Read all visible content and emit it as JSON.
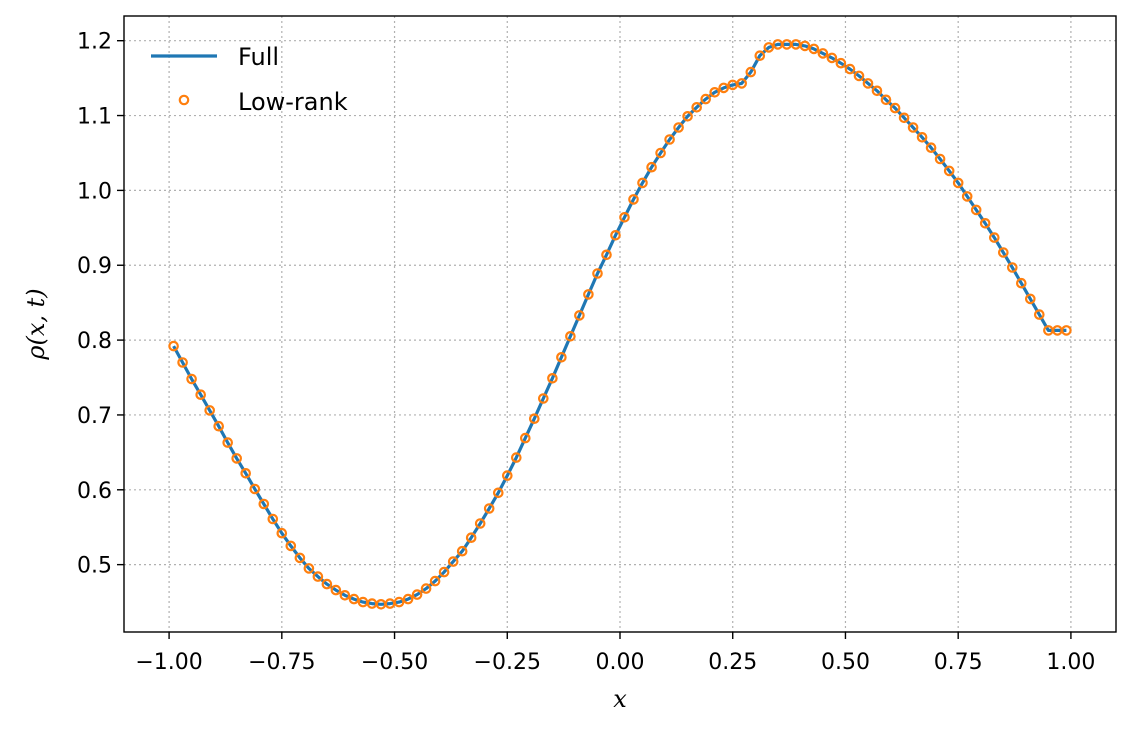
{
  "chart_data": {
    "type": "line",
    "xlabel": "x",
    "ylabel": "ρ(x, t)",
    "xlim": [
      -1.1,
      1.1
    ],
    "ylim": [
      0.41,
      1.233
    ],
    "grid": true,
    "legend_position": "top-left",
    "x_ticks": [
      -1.0,
      -0.75,
      -0.5,
      -0.25,
      0.0,
      0.25,
      0.5,
      0.75,
      1.0
    ],
    "x_tick_labels": [
      "−1.00",
      "−0.75",
      "−0.50",
      "−0.25",
      "0.00",
      "0.25",
      "0.50",
      "0.75",
      "1.00"
    ],
    "y_ticks": [
      0.5,
      0.6,
      0.7,
      0.8,
      0.9,
      1.0,
      1.1,
      1.2
    ],
    "y_tick_labels": [
      "0.5",
      "0.6",
      "0.7",
      "0.8",
      "0.9",
      "1.0",
      "1.1",
      "1.2"
    ],
    "series": [
      {
        "name": "Full",
        "style": "line",
        "color": "#1f77b4",
        "x": [
          -0.99,
          -0.97,
          -0.95,
          -0.93,
          -0.91,
          -0.89,
          -0.87,
          -0.85,
          -0.83,
          -0.81,
          -0.79,
          -0.77,
          -0.75,
          -0.73,
          -0.71,
          -0.69,
          -0.67,
          -0.65,
          -0.63,
          -0.61,
          -0.59,
          -0.57,
          -0.55,
          -0.53,
          -0.51,
          -0.49,
          -0.47,
          -0.45,
          -0.43,
          -0.41,
          -0.39,
          -0.37,
          -0.35,
          -0.33,
          -0.31,
          -0.29,
          -0.27,
          -0.25,
          -0.23,
          -0.21,
          -0.19,
          -0.17,
          -0.15,
          -0.13,
          -0.11,
          -0.09,
          -0.07,
          -0.05,
          -0.03,
          -0.01,
          0.01,
          0.03,
          0.05,
          0.07,
          0.09,
          0.11,
          0.13,
          0.15,
          0.17,
          0.19,
          0.21,
          0.23,
          0.25,
          0.27,
          0.29,
          0.31,
          0.33,
          0.35,
          0.37,
          0.39,
          0.41,
          0.43,
          0.45,
          0.47,
          0.49,
          0.51,
          0.53,
          0.55,
          0.57,
          0.59,
          0.61,
          0.63,
          0.65,
          0.67,
          0.69,
          0.71,
          0.73,
          0.75,
          0.77,
          0.79,
          0.81,
          0.83,
          0.85,
          0.87,
          0.89,
          0.91,
          0.93,
          0.95,
          0.97,
          0.99
        ],
        "y": [
          0.792,
          0.77,
          0.748,
          0.727,
          0.706,
          0.685,
          0.663,
          0.642,
          0.622,
          0.601,
          0.581,
          0.561,
          0.542,
          0.525,
          0.509,
          0.495,
          0.484,
          0.474,
          0.466,
          0.459,
          0.454,
          0.45,
          0.448,
          0.447,
          0.448,
          0.45,
          0.454,
          0.46,
          0.468,
          0.478,
          0.49,
          0.504,
          0.518,
          0.536,
          0.555,
          0.575,
          0.596,
          0.619,
          0.643,
          0.669,
          0.695,
          0.722,
          0.749,
          0.777,
          0.805,
          0.833,
          0.861,
          0.889,
          0.914,
          0.94,
          0.964,
          0.988,
          1.01,
          1.031,
          1.05,
          1.068,
          1.084,
          1.099,
          1.111,
          1.122,
          1.131,
          1.137,
          1.141,
          1.143,
          1.158,
          1.18,
          1.191,
          1.195,
          1.195,
          1.195,
          1.193,
          1.189,
          1.183,
          1.177,
          1.17,
          1.162,
          1.153,
          1.143,
          1.133,
          1.121,
          1.11,
          1.097,
          1.084,
          1.071,
          1.057,
          1.042,
          1.026,
          1.01,
          0.992,
          0.974,
          0.956,
          0.937,
          0.917,
          0.897,
          0.876,
          0.855,
          0.834,
          0.813,
          0.813,
          0.813
        ]
      },
      {
        "name": "Low-rank",
        "style": "marker-circle-open",
        "color": "#ff7f0e",
        "x": [
          -0.99,
          -0.97,
          -0.95,
          -0.93,
          -0.91,
          -0.89,
          -0.87,
          -0.85,
          -0.83,
          -0.81,
          -0.79,
          -0.77,
          -0.75,
          -0.73,
          -0.71,
          -0.69,
          -0.67,
          -0.65,
          -0.63,
          -0.61,
          -0.59,
          -0.57,
          -0.55,
          -0.53,
          -0.51,
          -0.49,
          -0.47,
          -0.45,
          -0.43,
          -0.41,
          -0.39,
          -0.37,
          -0.35,
          -0.33,
          -0.31,
          -0.29,
          -0.27,
          -0.25,
          -0.23,
          -0.21,
          -0.19,
          -0.17,
          -0.15,
          -0.13,
          -0.11,
          -0.09,
          -0.07,
          -0.05,
          -0.03,
          -0.01,
          0.01,
          0.03,
          0.05,
          0.07,
          0.09,
          0.11,
          0.13,
          0.15,
          0.17,
          0.19,
          0.21,
          0.23,
          0.25,
          0.27,
          0.29,
          0.31,
          0.33,
          0.35,
          0.37,
          0.39,
          0.41,
          0.43,
          0.45,
          0.47,
          0.49,
          0.51,
          0.53,
          0.55,
          0.57,
          0.59,
          0.61,
          0.63,
          0.65,
          0.67,
          0.69,
          0.71,
          0.73,
          0.75,
          0.77,
          0.79,
          0.81,
          0.83,
          0.85,
          0.87,
          0.89,
          0.91,
          0.93,
          0.95,
          0.97,
          0.99
        ],
        "y": [
          0.792,
          0.77,
          0.748,
          0.727,
          0.706,
          0.685,
          0.663,
          0.642,
          0.622,
          0.601,
          0.581,
          0.561,
          0.542,
          0.525,
          0.509,
          0.495,
          0.484,
          0.474,
          0.466,
          0.459,
          0.454,
          0.45,
          0.448,
          0.447,
          0.448,
          0.45,
          0.454,
          0.46,
          0.468,
          0.478,
          0.49,
          0.504,
          0.518,
          0.536,
          0.555,
          0.575,
          0.596,
          0.619,
          0.643,
          0.669,
          0.695,
          0.722,
          0.749,
          0.777,
          0.805,
          0.833,
          0.861,
          0.889,
          0.914,
          0.94,
          0.964,
          0.988,
          1.01,
          1.031,
          1.05,
          1.068,
          1.084,
          1.099,
          1.111,
          1.122,
          1.131,
          1.137,
          1.141,
          1.143,
          1.158,
          1.18,
          1.191,
          1.195,
          1.195,
          1.195,
          1.193,
          1.189,
          1.183,
          1.177,
          1.17,
          1.162,
          1.153,
          1.143,
          1.133,
          1.121,
          1.11,
          1.097,
          1.084,
          1.071,
          1.057,
          1.042,
          1.026,
          1.01,
          0.992,
          0.974,
          0.956,
          0.937,
          0.917,
          0.897,
          0.876,
          0.855,
          0.834,
          0.813,
          0.813,
          0.813
        ]
      }
    ]
  }
}
